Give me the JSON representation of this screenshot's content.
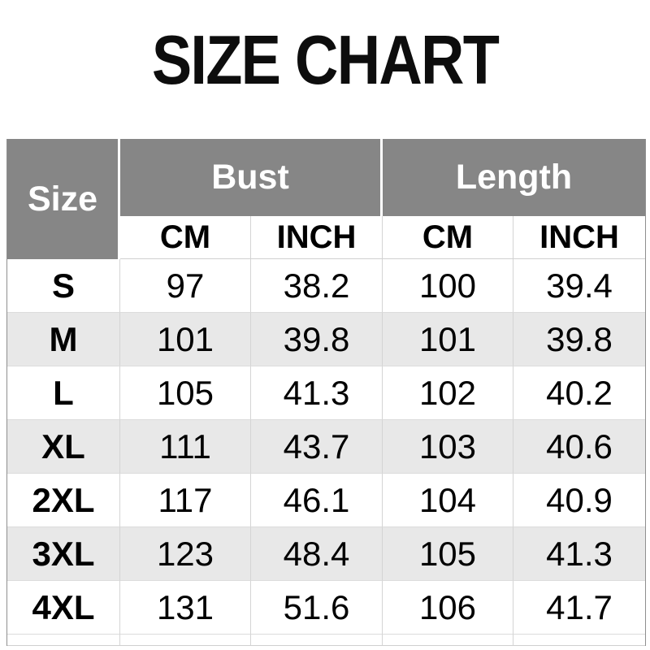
{
  "title": "SIZE CHART",
  "table": {
    "corner_label": "Size",
    "group_headers": [
      "Bust",
      "Length"
    ],
    "unit_headers": [
      "CM",
      "INCH",
      "CM",
      "INCH"
    ],
    "rows": [
      {
        "size": "S",
        "values": [
          "97",
          "38.2",
          "100",
          "39.4"
        ]
      },
      {
        "size": "M",
        "values": [
          "101",
          "39.8",
          "101",
          "39.8"
        ]
      },
      {
        "size": "L",
        "values": [
          "105",
          "41.3",
          "102",
          "40.2"
        ]
      },
      {
        "size": "XL",
        "values": [
          "111",
          "43.7",
          "103",
          "40.6"
        ]
      },
      {
        "size": "2XL",
        "values": [
          "117",
          "46.1",
          "104",
          "40.9"
        ]
      },
      {
        "size": "3XL",
        "values": [
          "123",
          "48.4",
          "105",
          "41.3"
        ]
      },
      {
        "size": "4XL",
        "values": [
          "131",
          "51.6",
          "106",
          "41.7"
        ]
      }
    ]
  },
  "colors": {
    "header_bg": "#868686",
    "header_text": "#ffffff",
    "stripe_bg": "#e8e8e8",
    "grid_line": "#d4d4d4",
    "outer_line": "#8f8f8f",
    "text": "#000000",
    "background": "#ffffff"
  },
  "chart_data": {
    "type": "table",
    "title": "SIZE CHART",
    "columns": [
      "Size",
      "Bust CM",
      "Bust INCH",
      "Length CM",
      "Length INCH"
    ],
    "rows": [
      [
        "S",
        97,
        38.2,
        100,
        39.4
      ],
      [
        "M",
        101,
        39.8,
        101,
        39.8
      ],
      [
        "L",
        105,
        41.3,
        102,
        40.2
      ],
      [
        "XL",
        111,
        43.7,
        103,
        40.6
      ],
      [
        "2XL",
        117,
        46.1,
        104,
        40.9
      ],
      [
        "3XL",
        123,
        48.4,
        105,
        41.3
      ],
      [
        "4XL",
        131,
        51.6,
        106,
        41.7
      ]
    ],
    "layout": {
      "group_headers": [
        {
          "label": "Bust",
          "spans": [
            "CM",
            "INCH"
          ]
        },
        {
          "label": "Length",
          "spans": [
            "CM",
            "INCH"
          ]
        }
      ],
      "zebra_striping": true,
      "striped_rows": [
        "M",
        "XL",
        "3XL"
      ]
    }
  }
}
